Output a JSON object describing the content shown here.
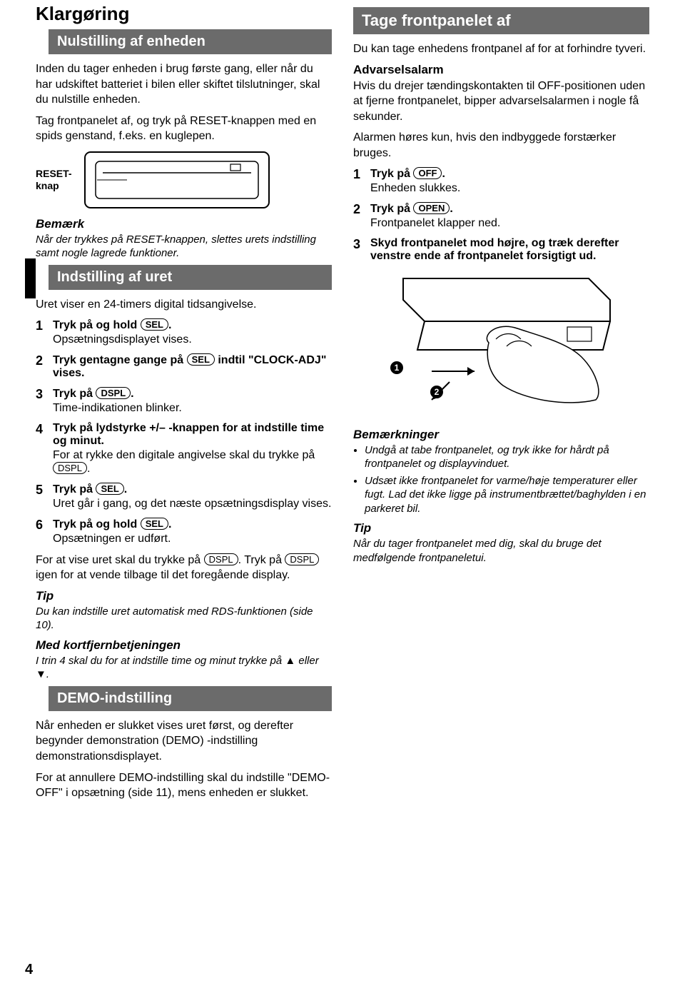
{
  "page_number": "4",
  "left": {
    "chapter": "Klargøring",
    "h1": "Nulstilling af enheden",
    "p1": "Inden du tager enheden i brug første gang, eller når du har udskiftet batteriet i bilen eller skiftet tilslutninger, skal du nulstille enheden.",
    "p2a": "Tag frontpanelet af, og tryk på RESET-knappen med en spids genstand, f.eks. en kuglepen.",
    "reset_label1": "RESET-",
    "reset_label2": "knap",
    "note_head": "Bemærk",
    "note_body": "Når der trykkes på RESET-knappen, slettes urets indstilling samt nogle lagrede funktioner.",
    "h2": "Indstilling af uret",
    "p3": "Uret viser en 24-timers digital tidsangivelse.",
    "steps": [
      {
        "n": "1",
        "l1a": "Tryk på og hold ",
        "btn": "SEL",
        "l1b": ".",
        "l2": "Opsætningsdisplayet vises."
      },
      {
        "n": "2",
        "l1a": "Tryk gentagne gange på ",
        "btn": "SEL",
        "l1b": " indtil \"CLOCK-ADJ\" vises.",
        "l2": ""
      },
      {
        "n": "3",
        "l1a": "Tryk på ",
        "btn": "DSPL",
        "l1b": ".",
        "l2": "Time-indikationen blinker."
      },
      {
        "n": "4",
        "l1a": "Tryk på lydstyrke +/– -knappen for at indstille time og minut.",
        "btn": "",
        "l1b": "",
        "l2a": "For at rykke den digitale angivelse skal du trykke på ",
        "l2btn": "DSPL",
        "l2b": "."
      },
      {
        "n": "5",
        "l1a": "Tryk på ",
        "btn": "SEL",
        "l1b": ".",
        "l2": "Uret går i gang, og det næste opsætningsdisplay vises."
      },
      {
        "n": "6",
        "l1a": "Tryk på og hold ",
        "btn": "SEL",
        "l1b": ".",
        "l2": "Opsætningen er udført."
      }
    ],
    "after_steps_a": "For at vise uret skal du trykke på ",
    "after_btn1": "DSPL",
    "after_steps_b": ". Tryk på ",
    "after_btn2": "DSPL",
    "after_steps_c": " igen for at vende tilbage til det foregående display.",
    "tip_head": "Tip",
    "tip_body": "Du kan indstille uret automatisk med RDS-funktionen (side 10).",
    "remote_head": "Med kortfjernbetjeningen",
    "remote_body_a": "I trin 4 skal du for at indstille time og minut trykke på ",
    "remote_body_b": " eller ",
    "remote_body_c": ".",
    "h3": "DEMO-indstilling",
    "p4": "Når enheden er slukket vises uret først, og derefter begynder demonstration (DEMO) -indstilling demonstrationsdisplayet.",
    "p5": "For at annullere DEMO-indstilling skal du indstille \"DEMO-OFF\" i opsætning (side 11), mens enheden er slukket."
  },
  "right": {
    "h1": "Tage frontpanelet af",
    "p1": "Du kan tage enhedens frontpanel af for at forhindre tyveri.",
    "warn_head": "Advarselsalarm",
    "warn_body": "Hvis du drejer tændingskontakten til OFF-positionen uden at fjerne frontpanelet, bipper advarselsalarmen i nogle få sekunder.",
    "warn_body2": "Alarmen høres kun, hvis den indbyggede forstærker bruges.",
    "steps": [
      {
        "n": "1",
        "l1a": "Tryk på ",
        "btn": "OFF",
        "l1b": ".",
        "l2": "Enheden slukkes."
      },
      {
        "n": "2",
        "l1a": "Tryk på ",
        "btn": "OPEN",
        "l1b": ".",
        "l2": "Frontpanelet klapper ned."
      },
      {
        "n": "3",
        "l1a": "Skyd frontpanelet mod højre, og træk derefter venstre ende af frontpanelet forsigtigt ud.",
        "btn": "",
        "l1b": "",
        "l2": ""
      }
    ],
    "notes_head": "Bemærkninger",
    "notes": [
      "Undgå at tabe frontpanelet, og tryk ikke for hårdt på frontpanelet og displayvinduet.",
      "Udsæt ikke frontpanelet for varme/høje temperaturer eller fugt. Lad det ikke ligge på instrumentbrættet/baghylden i en parkeret bil."
    ],
    "tip_head": "Tip",
    "tip_body": "Når du tager frontpanelet med dig, skal du bruge det medfølgende frontpaneletui.",
    "fig_labels": {
      "a": "1",
      "b": "2"
    }
  }
}
